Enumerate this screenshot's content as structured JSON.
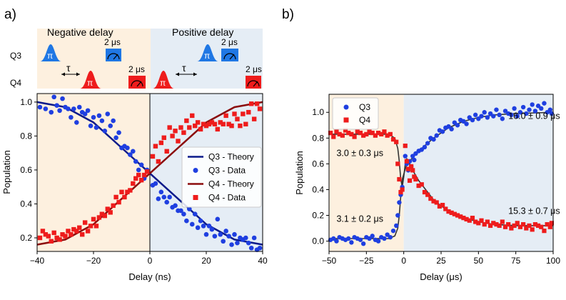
{
  "panel_a": {
    "label": "a)",
    "schematic": {
      "negative_label": "Negative delay",
      "positive_label": "Positive delay",
      "row_q3": "Q3",
      "row_q4": "Q4",
      "pi": "π",
      "tau": "τ",
      "readout_time": "2 μs",
      "q3_color": "#1f77e4",
      "q4_color": "#ee1c1c",
      "neg_bg": "#fdf0df",
      "pos_bg": "#e5edf5"
    }
  },
  "panel_b": {
    "label": "b)"
  },
  "chart_data": [
    {
      "type": "scatter",
      "panel": "a",
      "xlabel": "Delay (ns)",
      "ylabel": "Population",
      "xlim": [
        -40,
        40
      ],
      "ylim": [
        0.12,
        1.05
      ],
      "xticks": [
        -40,
        -20,
        0,
        20,
        40
      ],
      "yticks": [
        0.2,
        0.4,
        0.6,
        0.8,
        1.0
      ],
      "xtick_labels": [
        "−40",
        "−20",
        "0",
        "20",
        "40"
      ],
      "ytick_labels": [
        "0.2",
        "0.4",
        "0.6",
        "0.8",
        "1.0"
      ],
      "legend_position": "center-right",
      "legend": [
        {
          "label": "Q3 - Theory",
          "kind": "line",
          "color": "#0a1a8a"
        },
        {
          "label": "Q3 - Data",
          "kind": "circle",
          "color": "#1f3fe0"
        },
        {
          "label": "Q4 - Theory",
          "kind": "line",
          "color": "#8b0b0b"
        },
        {
          "label": "Q4 - Data",
          "kind": "square",
          "color": "#ee1c1c"
        }
      ],
      "theory": {
        "q3": {
          "x": [
            -40,
            -30,
            -20,
            -10,
            0,
            10,
            20,
            30,
            40
          ],
          "y": [
            1.0,
            0.97,
            0.88,
            0.73,
            0.58,
            0.43,
            0.28,
            0.19,
            0.16
          ]
        },
        "q4": {
          "x": [
            -40,
            -30,
            -20,
            -10,
            0,
            10,
            20,
            30,
            40
          ],
          "y": [
            0.16,
            0.19,
            0.28,
            0.43,
            0.58,
            0.73,
            0.88,
            0.97,
            1.0
          ]
        }
      },
      "series": [
        {
          "name": "Q3 - Data",
          "x": [
            -39,
            -37,
            -35,
            -34,
            -33,
            -32,
            -31,
            -30,
            -29,
            -28,
            -27,
            -26,
            -25,
            -24,
            -23,
            -22,
            -21,
            -20,
            -19,
            -18,
            -17,
            -16,
            -15,
            -14,
            -13,
            -12,
            -11,
            -10,
            -9,
            -8,
            -7,
            -6,
            -5,
            -4,
            -3,
            -2,
            -1,
            1,
            2,
            3,
            4,
            5,
            6,
            7,
            8,
            9,
            10,
            11,
            12,
            13,
            14,
            15,
            16,
            17,
            18,
            19,
            20,
            21,
            22,
            23,
            24,
            25,
            26,
            27,
            28,
            29,
            30,
            31,
            32,
            33,
            34,
            35,
            36,
            37,
            38,
            39
          ],
          "y": [
            0.97,
            0.96,
            0.94,
            1.03,
            0.98,
            0.95,
            1.02,
            0.97,
            0.96,
            0.91,
            0.96,
            0.88,
            0.97,
            0.94,
            0.93,
            0.95,
            0.86,
            0.91,
            0.85,
            0.92,
            0.89,
            0.83,
            0.93,
            0.86,
            0.89,
            0.79,
            0.82,
            0.73,
            0.74,
            0.73,
            0.69,
            0.71,
            0.65,
            0.6,
            0.63,
            0.55,
            0.6,
            0.51,
            0.52,
            0.43,
            0.47,
            0.44,
            0.41,
            0.44,
            0.38,
            0.39,
            0.36,
            0.36,
            0.34,
            0.3,
            0.37,
            0.28,
            0.34,
            0.26,
            0.3,
            0.27,
            0.22,
            0.27,
            0.25,
            0.21,
            0.31,
            0.22,
            0.18,
            0.24,
            0.21,
            0.16,
            0.22,
            0.17,
            0.2,
            0.19,
            0.2,
            0.17,
            0.14,
            0.2,
            0.13,
            0.14
          ]
        },
        {
          "name": "Q4 - Data",
          "x": [
            -39,
            -38,
            -37,
            -36,
            -35,
            -34,
            -33,
            -32,
            -31,
            -30,
            -29,
            -28,
            -27,
            -26,
            -25,
            -24,
            -23,
            -22,
            -21,
            -20,
            -19,
            -18,
            -17,
            -16,
            -15,
            -14,
            -13,
            -12,
            -11,
            -10,
            -9,
            -8,
            -7,
            -6,
            -5,
            -4,
            -3,
            -2,
            -1,
            1,
            2,
            3,
            4,
            5,
            6,
            7,
            8,
            9,
            10,
            11,
            12,
            13,
            14,
            15,
            16,
            17,
            18,
            19,
            20,
            21,
            22,
            23,
            24,
            25,
            26,
            27,
            28,
            29,
            30,
            31,
            32,
            33,
            34,
            35,
            36,
            37,
            38,
            39
          ],
          "y": [
            0.2,
            0.24,
            0.22,
            0.21,
            0.18,
            0.23,
            0.2,
            0.19,
            0.22,
            0.21,
            0.24,
            0.22,
            0.25,
            0.24,
            0.26,
            0.22,
            0.29,
            0.24,
            0.27,
            0.31,
            0.27,
            0.32,
            0.34,
            0.33,
            0.37,
            0.35,
            0.39,
            0.44,
            0.41,
            0.47,
            0.44,
            0.47,
            0.48,
            0.52,
            0.55,
            0.57,
            0.54,
            0.57,
            0.59,
            0.68,
            0.74,
            0.65,
            0.76,
            0.79,
            0.71,
            0.85,
            0.8,
            0.83,
            0.77,
            0.85,
            0.82,
            0.89,
            0.85,
            0.92,
            0.86,
            0.88,
            0.84,
            0.87,
            0.86,
            0.87,
            0.88,
            0.87,
            0.84,
            0.88,
            0.87,
            0.92,
            0.87,
            0.86,
            0.93,
            0.9,
            0.86,
            0.93,
            0.87,
            0.94,
            0.99,
            0.9,
            0.99,
            0.96
          ]
        }
      ]
    },
    {
      "type": "scatter",
      "panel": "b",
      "xlabel": "Delay (μs)",
      "ylabel": "Population",
      "xlim": [
        -50,
        100
      ],
      "ylim": [
        -0.08,
        1.14
      ],
      "xticks": [
        -50,
        -25,
        0,
        25,
        50,
        75,
        100
      ],
      "yticks": [
        0.0,
        0.2,
        0.4,
        0.6,
        0.8,
        1.0
      ],
      "xtick_labels": [
        "−50",
        "−25",
        "0",
        "25",
        "50",
        "75",
        "100"
      ],
      "ytick_labels": [
        "0.0",
        "0.2",
        "0.4",
        "0.6",
        "0.8",
        "1.0"
      ],
      "legend_position": "top-left",
      "legend": [
        {
          "label": "Q3",
          "kind": "circle",
          "color": "#1f3fe0"
        },
        {
          "label": "Q4",
          "kind": "square",
          "color": "#ee1c1c"
        }
      ],
      "annotations": [
        {
          "text": "16.0 ± 0.9 μs",
          "x": 70,
          "y": 0.95
        },
        {
          "text": "3.0 ± 0.3 μs",
          "x": -45,
          "y": 0.66
        },
        {
          "text": "3.1 ± 0.2 μs",
          "x": -45,
          "y": 0.15
        },
        {
          "text": "15.3 ± 0.7 μs",
          "x": 70,
          "y": 0.21
        }
      ],
      "fits": {
        "q3": {
          "x": [
            -50,
            -10,
            -6,
            -4,
            -3,
            -2,
            -1,
            0,
            1,
            2,
            4,
            6,
            10,
            20,
            30,
            40,
            50,
            60,
            75,
            100
          ],
          "y": [
            0.02,
            0.02,
            0.04,
            0.1,
            0.2,
            0.35,
            0.48,
            0.52,
            0.56,
            0.59,
            0.62,
            0.65,
            0.7,
            0.8,
            0.88,
            0.93,
            0.96,
            0.98,
            0.99,
            1.0
          ]
        },
        "q4": {
          "x": [
            -50,
            -10,
            -6,
            -4,
            -3,
            -2,
            -1,
            0,
            1,
            2,
            4,
            6,
            10,
            20,
            30,
            40,
            50,
            60,
            75,
            100
          ],
          "y": [
            0.83,
            0.83,
            0.8,
            0.72,
            0.62,
            0.48,
            0.42,
            0.5,
            0.6,
            0.64,
            0.6,
            0.55,
            0.47,
            0.32,
            0.23,
            0.18,
            0.15,
            0.13,
            0.12,
            0.12
          ]
        }
      },
      "series": [
        {
          "name": "Q3",
          "x": [
            -49,
            -47,
            -45,
            -43,
            -41,
            -39,
            -37,
            -35,
            -33,
            -31,
            -29,
            -27,
            -25,
            -23,
            -21,
            -19,
            -17,
            -15,
            -13,
            -11,
            -9,
            -7,
            -5,
            -4,
            -3,
            -2,
            -1,
            1,
            2,
            3,
            4,
            5,
            6,
            7,
            8,
            10,
            12,
            14,
            16,
            18,
            20,
            22,
            24,
            26,
            28,
            30,
            32,
            34,
            36,
            38,
            40,
            42,
            44,
            46,
            48,
            50,
            52,
            54,
            56,
            58,
            60,
            62,
            64,
            66,
            68,
            70,
            72,
            74,
            76,
            78,
            80,
            82,
            84,
            86,
            88,
            90,
            92,
            94,
            96,
            98,
            99
          ],
          "y": [
            0.01,
            0.02,
            0.0,
            0.03,
            0.02,
            0.01,
            0.02,
            -0.01,
            0.03,
            0.02,
            0.01,
            -0.02,
            0.03,
            0.02,
            0.04,
            0.01,
            0.0,
            0.03,
            0.02,
            0.05,
            0.03,
            0.08,
            0.12,
            0.2,
            0.3,
            0.36,
            0.42,
            0.66,
            0.6,
            0.55,
            0.62,
            0.58,
            0.66,
            0.63,
            0.68,
            0.7,
            0.71,
            0.73,
            0.76,
            0.8,
            0.79,
            0.82,
            0.86,
            0.85,
            0.88,
            0.89,
            0.87,
            0.92,
            0.9,
            0.94,
            0.93,
            0.91,
            0.96,
            0.94,
            0.98,
            0.95,
            0.97,
            1.0,
            0.96,
            0.99,
            0.97,
            1.02,
            0.98,
            0.95,
            1.01,
            0.99,
            0.98,
            1.03,
            0.97,
            1.0,
            1.04,
            0.99,
            1.02,
            1.06,
            1.01,
            1.05,
            1.03,
            1.07,
            1.0,
            1.02,
            0.99
          ]
        },
        {
          "name": "Q4",
          "x": [
            -49,
            -47,
            -45,
            -43,
            -41,
            -39,
            -37,
            -35,
            -33,
            -31,
            -29,
            -27,
            -25,
            -23,
            -21,
            -19,
            -17,
            -15,
            -13,
            -11,
            -9,
            -7,
            -5,
            -4,
            -3,
            -2,
            -1,
            1,
            2,
            3,
            4,
            5,
            6,
            7,
            8,
            10,
            12,
            14,
            16,
            18,
            20,
            22,
            24,
            26,
            28,
            30,
            32,
            34,
            36,
            38,
            40,
            42,
            44,
            46,
            48,
            50,
            52,
            54,
            56,
            58,
            60,
            62,
            64,
            66,
            68,
            70,
            72,
            74,
            76,
            78,
            80,
            82,
            84,
            86,
            88,
            90,
            92,
            94,
            96,
            98,
            99
          ],
          "y": [
            0.84,
            0.81,
            0.85,
            0.83,
            0.82,
            0.86,
            0.84,
            0.83,
            0.81,
            0.85,
            0.84,
            0.82,
            0.83,
            0.85,
            0.84,
            0.82,
            0.84,
            0.83,
            0.85,
            0.82,
            0.83,
            0.79,
            0.77,
            0.6,
            0.48,
            0.38,
            0.4,
            0.74,
            0.62,
            0.56,
            0.47,
            0.58,
            0.55,
            0.5,
            0.48,
            0.43,
            0.44,
            0.38,
            0.36,
            0.33,
            0.31,
            0.3,
            0.27,
            0.28,
            0.25,
            0.23,
            0.22,
            0.21,
            0.2,
            0.19,
            0.18,
            0.17,
            0.16,
            0.18,
            0.15,
            0.14,
            0.16,
            0.13,
            0.15,
            0.12,
            0.14,
            0.13,
            0.12,
            0.15,
            0.11,
            0.13,
            0.1,
            0.12,
            0.14,
            0.11,
            0.13,
            0.1,
            0.12,
            0.09,
            0.13,
            0.12,
            0.11,
            0.08,
            0.13,
            0.11,
            0.14
          ]
        }
      ]
    }
  ]
}
